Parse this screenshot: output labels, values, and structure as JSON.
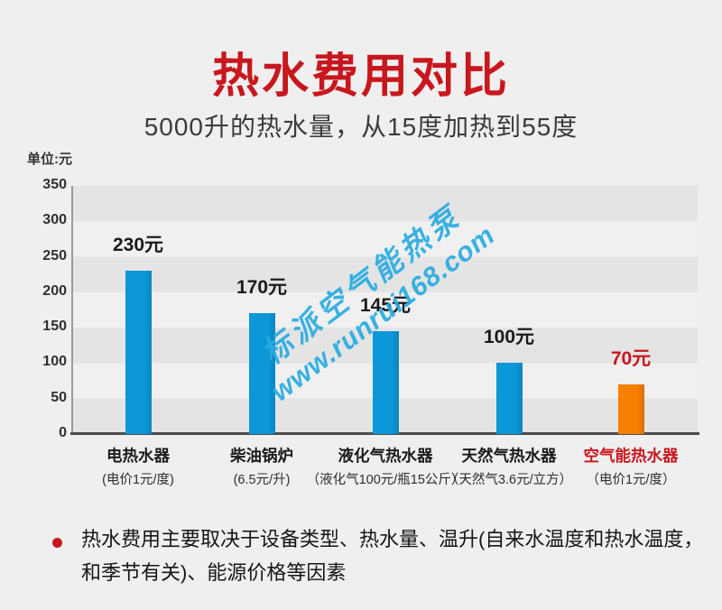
{
  "header": {
    "title": "热水费用对比",
    "subtitle": "5000升的热水量，从15度加热到55度"
  },
  "chart_data": {
    "type": "bar",
    "title": "热水费用对比",
    "subtitle": "5000升的热水量，从15度加热到55度",
    "unit_label": "单位:元",
    "ylabel": "元",
    "ylim": [
      0,
      350
    ],
    "yticks": [
      350,
      300,
      250,
      200,
      150,
      100,
      50,
      0
    ],
    "grid": "horizontal-stripes",
    "categories": [
      "电热水器",
      "柴油锅炉",
      "液化气热水器",
      "天然气热水器",
      "空气能热水器"
    ],
    "category_notes": [
      "(电价1元/度)",
      "(6.5元/升)",
      "（液化气100元/瓶15公斤）",
      "（天然气3.6元/立方）",
      "（电价1元/度）"
    ],
    "values": [
      230,
      170,
      145,
      100,
      70
    ],
    "value_labels": [
      "230元",
      "170元",
      "145元",
      "100元",
      "70元"
    ],
    "bar_colors": [
      "#0c97d8",
      "#0c97d8",
      "#0c97d8",
      "#0c97d8",
      "#f88000"
    ],
    "value_label_colors": [
      "#1a1a1a",
      "#1a1a1a",
      "#1a1a1a",
      "#1a1a1a",
      "#c8171e"
    ],
    "category_colors": [
      "#1b1b1b",
      "#1b1b1b",
      "#1b1b1b",
      "#1b1b1b",
      "#c8171e"
    ]
  },
  "watermark": {
    "line1": "标派空气能热泵",
    "line2": "www.runrui168.com",
    "color": "#29abe2"
  },
  "footnote": {
    "line1": "热水费用主要取决于设备类型、热水量、温升(自来水温度和热水温度，",
    "line2": "和季节有关)、能源价格等因素"
  },
  "colors": {
    "background": "#efefef",
    "title_red": "#c8171e",
    "bar_blue": "#0c97d8",
    "bar_orange": "#f88000",
    "stripe_dark": "#e4e4e4",
    "stripe_light": "#f0f0f0",
    "axis_dark": "#4c4c4c",
    "axis_gray": "#9a9a9a"
  }
}
